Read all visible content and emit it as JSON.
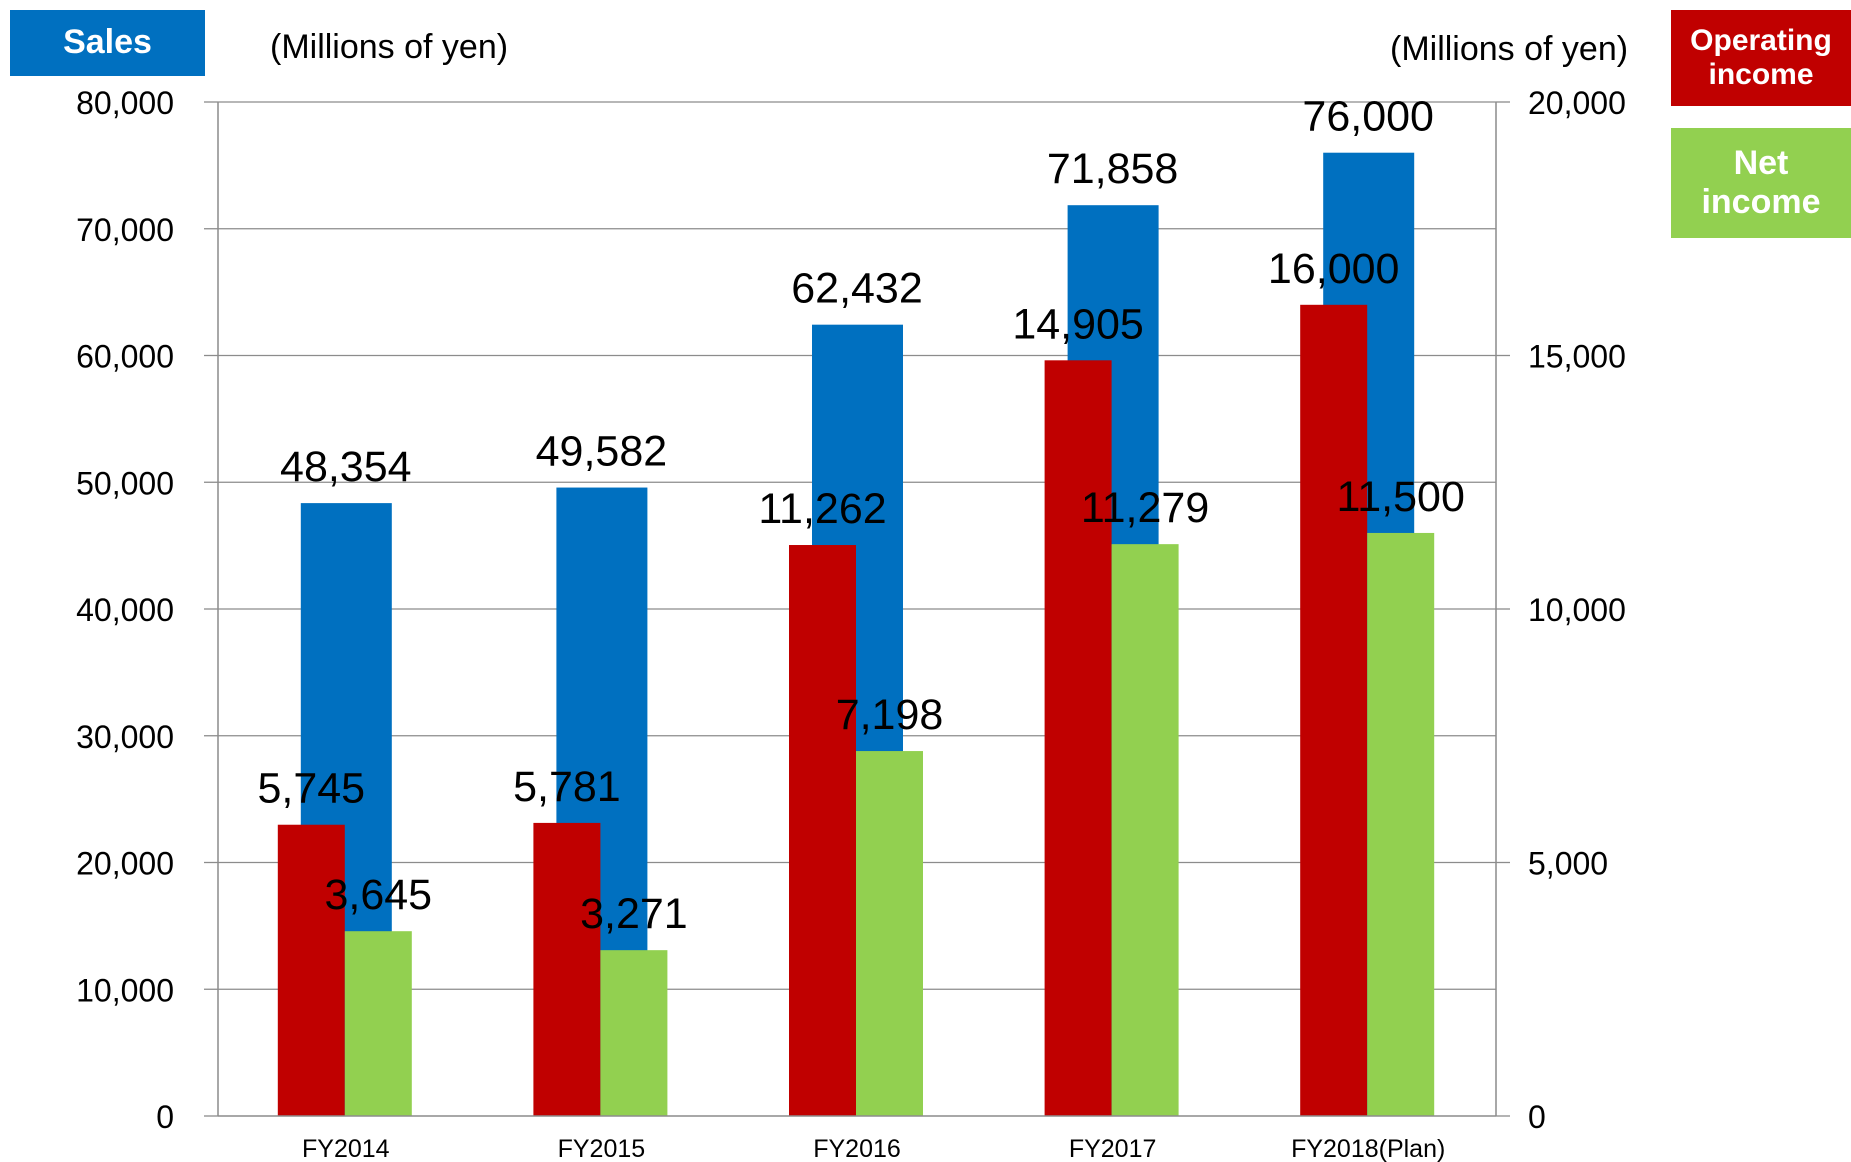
{
  "chart_data": {
    "type": "bar",
    "categories": [
      "FY2014",
      "FY2015",
      "FY2016",
      "FY2017",
      "FY2018(Plan)"
    ],
    "series": [
      {
        "name": "Sales",
        "axis": "left",
        "color": "#0070C0",
        "values": [
          48354,
          49582,
          62432,
          71858,
          76000
        ],
        "labels": [
          "48,354",
          "49,582",
          "62,432",
          "71,858",
          "76,000"
        ]
      },
      {
        "name": "Operating income",
        "axis": "right",
        "color": "#C00000",
        "values": [
          5745,
          5781,
          11262,
          14905,
          16000
        ],
        "labels": [
          "5,745",
          "5,781",
          "11,262",
          "14,905",
          "16,000"
        ]
      },
      {
        "name": "Net income",
        "axis": "right",
        "color": "#92D050",
        "values": [
          3645,
          3271,
          7198,
          11279,
          11500
        ],
        "labels": [
          "3,645",
          "3,271",
          "7,198",
          "11,279",
          "11,500"
        ]
      }
    ],
    "y_left": {
      "label": "(Millions of yen)",
      "min": 0,
      "max": 80000,
      "ticks": [
        "0",
        "10,000",
        "20,000",
        "30,000",
        "40,000",
        "50,000",
        "60,000",
        "70,000",
        "80,000"
      ]
    },
    "y_right": {
      "label": "(Millions of yen)",
      "min": 0,
      "max": 20000,
      "ticks": [
        "0",
        "5,000",
        "10,000",
        "15,000",
        "20,000"
      ]
    },
    "grid": true,
    "legend": {
      "sales_label": "Sales",
      "op_label_1": "Operating",
      "op_label_2": "income",
      "net_label_1": "Net",
      "net_label_2": "income"
    }
  }
}
